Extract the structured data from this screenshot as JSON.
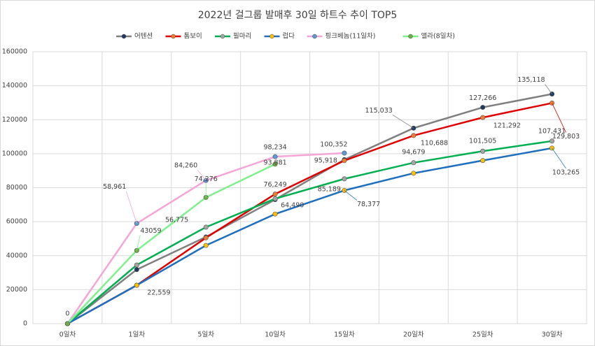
{
  "chart_data": {
    "type": "line",
    "title": "2022년 걸그룹 발매후 30일 하트수 추이 TOP5",
    "categories": [
      "0일차",
      "1일차",
      "5일차",
      "10일차",
      "15일차",
      "20일차",
      "25일차",
      "30일차"
    ],
    "ylim": [
      0,
      160000
    ],
    "yticks": [
      0,
      20000,
      40000,
      60000,
      80000,
      100000,
      120000,
      140000,
      160000
    ],
    "grid": true,
    "legend": "top",
    "series": [
      {
        "name": "어텐션",
        "color": "#7f7f7f",
        "marker_color": "#1f3864",
        "values": [
          0,
          31800,
          51000,
          73000,
          96500,
          115033,
          127266,
          135118
        ],
        "value_labels": [
          "0",
          null,
          null,
          null,
          null,
          "115,033",
          "127,266",
          "135,118"
        ]
      },
      {
        "name": "톰보이",
        "color": "#e00000",
        "marker_color": "#ed7d31",
        "values": [
          0,
          22559,
          50500,
          76249,
          95918,
          110688,
          121292,
          129803
        ],
        "value_labels": [
          null,
          null,
          null,
          "76,249",
          "95,918",
          "110,688",
          "121,292",
          "129,803"
        ]
      },
      {
        "name": "필마리",
        "color": "#00b050",
        "marker_color": "#a5a5a5",
        "values": [
          0,
          34500,
          56775,
          73500,
          85189,
          94679,
          101505,
          107431
        ],
        "value_labels": [
          null,
          null,
          "56,775",
          null,
          "85,189",
          "94,679",
          "101,505",
          "107,431"
        ]
      },
      {
        "name": "럽다",
        "color": "#1f6fbf",
        "marker_color": "#ffc000",
        "values": [
          0,
          22559,
          46000,
          64490,
          78377,
          88500,
          96000,
          103265
        ],
        "value_labels": [
          null,
          "22,559",
          null,
          "64,490",
          "78,377",
          null,
          null,
          "103,265"
        ]
      },
      {
        "name": "핑크베놈(11일차)",
        "color": "#f4a6d7",
        "marker_color": "#5b9bd5",
        "values": [
          0,
          58961,
          84260,
          98234,
          100352,
          null,
          null,
          null
        ],
        "value_labels": [
          null,
          "58,961",
          "84,260",
          "98,234",
          "100,352",
          null,
          null,
          null
        ]
      },
      {
        "name": "앨라(8일차)",
        "color": "#7ef08c",
        "marker_color": "#70ad47",
        "values": [
          0,
          43059,
          74276,
          93881,
          null,
          null,
          null,
          null
        ],
        "value_labels": [
          null,
          "43059",
          "74,276",
          "93,881",
          null,
          null,
          null,
          null
        ]
      }
    ]
  }
}
